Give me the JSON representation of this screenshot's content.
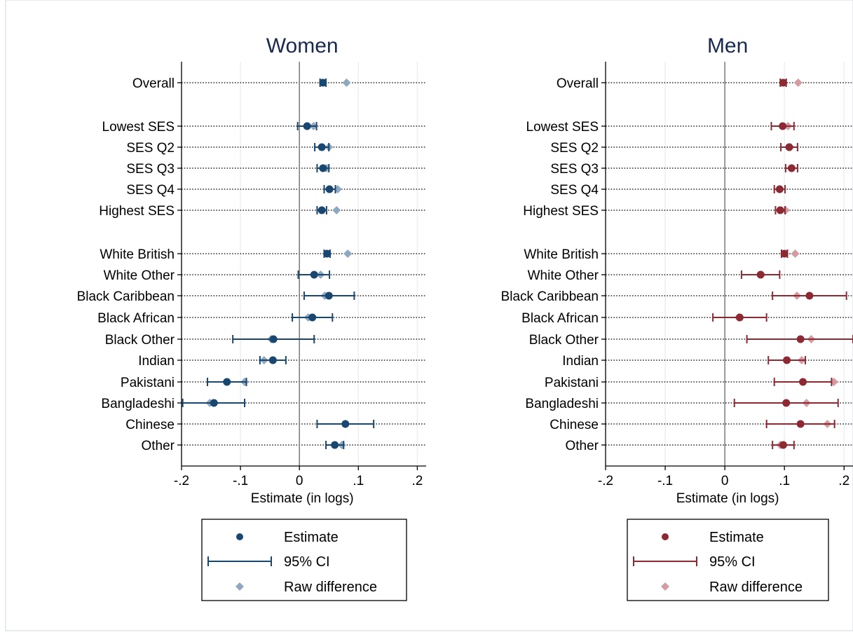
{
  "chart_data": [
    {
      "type": "scatter",
      "title": "Women",
      "xlabel": "Estimate (in logs)",
      "xlim": [
        -0.2,
        0.215
      ],
      "xticks": [
        -0.2,
        -0.1,
        0,
        0.1,
        0.2
      ],
      "xtick_labels": [
        "-.2",
        "-.1",
        "0",
        ".1",
        ".2"
      ],
      "grid": "vertical-light",
      "colors": {
        "estimate": "#1a476f",
        "ci": "#1a476f",
        "raw": "#90a8c0"
      },
      "legend": {
        "placement": "bottom",
        "entries": [
          "Estimate",
          "95% CI",
          "Raw difference"
        ]
      },
      "rows": [
        {
          "label": "Overall",
          "estimate": 0.04,
          "ci": [
            0.035,
            0.045
          ],
          "raw": 0.08
        },
        {
          "label": "Lowest SES",
          "estimate": 0.013,
          "ci": [
            -0.003,
            0.029
          ],
          "raw": 0.024
        },
        {
          "label": "SES Q2",
          "estimate": 0.038,
          "ci": [
            0.026,
            0.05
          ],
          "raw": 0.05
        },
        {
          "label": "SES Q3",
          "estimate": 0.04,
          "ci": [
            0.03,
            0.05
          ],
          "raw": 0.046
        },
        {
          "label": "SES Q4",
          "estimate": 0.051,
          "ci": [
            0.042,
            0.061
          ],
          "raw": 0.065
        },
        {
          "label": "Highest SES",
          "estimate": 0.038,
          "ci": [
            0.03,
            0.046
          ],
          "raw": 0.063
        },
        {
          "label": "White British",
          "estimate": 0.047,
          "ci": [
            0.042,
            0.052
          ],
          "raw": 0.082
        },
        {
          "label": "White Other",
          "estimate": 0.025,
          "ci": [
            -0.002,
            0.051
          ],
          "raw": 0.036
        },
        {
          "label": "Black Caribbean",
          "estimate": 0.05,
          "ci": [
            0.008,
            0.093
          ],
          "raw": 0.043
        },
        {
          "label": "Black African",
          "estimate": 0.022,
          "ci": [
            -0.012,
            0.056
          ],
          "raw": 0.015
        },
        {
          "label": "Black Other",
          "estimate": -0.044,
          "ci": [
            -0.113,
            0.025
          ],
          "raw": -0.048
        },
        {
          "label": "Indian",
          "estimate": -0.045,
          "ci": [
            -0.067,
            -0.023
          ],
          "raw": -0.06
        },
        {
          "label": "Pakistani",
          "estimate": -0.123,
          "ci": [
            -0.156,
            -0.09
          ],
          "raw": -0.093
        },
        {
          "label": "Bangladeshi",
          "estimate": -0.145,
          "ci": [
            -0.198,
            -0.093
          ],
          "raw": -0.152
        },
        {
          "label": "Chinese",
          "estimate": 0.078,
          "ci": [
            0.03,
            0.126
          ],
          "raw": 0.078
        },
        {
          "label": "Other",
          "estimate": 0.06,
          "ci": [
            0.045,
            0.075
          ],
          "raw": 0.072
        }
      ]
    },
    {
      "type": "scatter",
      "title": "Men",
      "xlabel": "Estimate (in logs)",
      "xlim": [
        -0.2,
        0.215
      ],
      "xticks": [
        -0.2,
        -0.1,
        0,
        0.1,
        0.2
      ],
      "xtick_labels": [
        "-.2",
        "-.1",
        "0",
        ".1",
        ".2"
      ],
      "grid": "vertical-light",
      "colors": {
        "estimate": "#8c2a33",
        "ci": "#8c2a33",
        "raw": "#d29ca2"
      },
      "legend": {
        "placement": "bottom",
        "entries": [
          "Estimate",
          "95% CI",
          "Raw difference"
        ]
      },
      "rows": [
        {
          "label": "Overall",
          "estimate": 0.098,
          "ci": [
            0.093,
            0.103
          ],
          "raw": 0.123
        },
        {
          "label": "Lowest SES",
          "estimate": 0.097,
          "ci": [
            0.078,
            0.116
          ],
          "raw": 0.106
        },
        {
          "label": "SES Q2",
          "estimate": 0.108,
          "ci": [
            0.094,
            0.122
          ],
          "raw": 0.11
        },
        {
          "label": "SES Q3",
          "estimate": 0.112,
          "ci": [
            0.102,
            0.122
          ],
          "raw": 0.112
        },
        {
          "label": "SES Q4",
          "estimate": 0.092,
          "ci": [
            0.083,
            0.101
          ],
          "raw": 0.092
        },
        {
          "label": "Highest SES",
          "estimate": 0.093,
          "ci": [
            0.085,
            0.101
          ],
          "raw": 0.102
        },
        {
          "label": "White British",
          "estimate": 0.1,
          "ci": [
            0.095,
            0.105
          ],
          "raw": 0.118
        },
        {
          "label": "White Other",
          "estimate": 0.06,
          "ci": [
            0.028,
            0.092
          ],
          "raw": 0.062
        },
        {
          "label": "Black Caribbean",
          "estimate": 0.142,
          "ci": [
            0.08,
            0.204
          ],
          "raw": 0.121
        },
        {
          "label": "Black African",
          "estimate": 0.025,
          "ci": [
            -0.02,
            0.07
          ],
          "raw": 0.023
        },
        {
          "label": "Black Other",
          "estimate": 0.127,
          "ci": [
            0.037,
            0.217
          ],
          "raw": 0.145
        },
        {
          "label": "Indian",
          "estimate": 0.104,
          "ci": [
            0.073,
            0.135
          ],
          "raw": 0.129
        },
        {
          "label": "Pakistani",
          "estimate": 0.131,
          "ci": [
            0.083,
            0.179
          ],
          "raw": 0.183
        },
        {
          "label": "Bangladeshi",
          "estimate": 0.103,
          "ci": [
            0.016,
            0.19
          ],
          "raw": 0.137
        },
        {
          "label": "Chinese",
          "estimate": 0.127,
          "ci": [
            0.07,
            0.184
          ],
          "raw": 0.172
        },
        {
          "label": "Other",
          "estimate": 0.098,
          "ci": [
            0.08,
            0.116
          ],
          "raw": 0.093
        }
      ]
    }
  ]
}
